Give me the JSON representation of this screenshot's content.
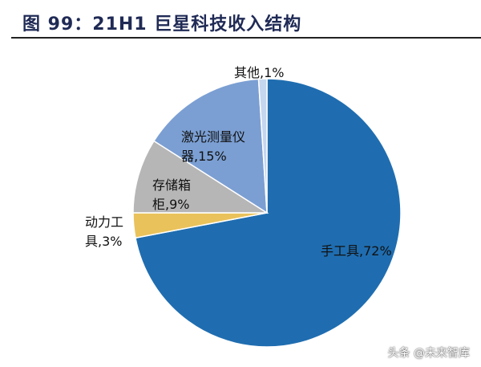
{
  "title": "图 99：21H1 巨星科技收入结构",
  "watermark": "头条 @未来智库",
  "chart_data": {
    "type": "pie",
    "title": "图 99：21H1 巨星科技收入结构",
    "start": "12 o'clock, clockwise",
    "slices": [
      {
        "name": "手工具",
        "value": 72,
        "color": "#1f6db0",
        "label_lines": [
          "手工具,72%"
        ]
      },
      {
        "name": "动力工具",
        "value": 3,
        "color": "#e9c25b",
        "label_lines": [
          "动力工",
          "具,3%"
        ]
      },
      {
        "name": "存储箱柜",
        "value": 9,
        "color": "#b6b6b6",
        "label_lines": [
          "存储箱",
          "柜,9%"
        ]
      },
      {
        "name": "激光测量仪器",
        "value": 15,
        "color": "#7b9fd3",
        "label_lines": [
          "激光测量仪",
          "器,15%"
        ]
      },
      {
        "name": "其他",
        "value": 1,
        "color": "#c5d6ef",
        "label_lines": [
          "其他,1%"
        ]
      }
    ]
  }
}
